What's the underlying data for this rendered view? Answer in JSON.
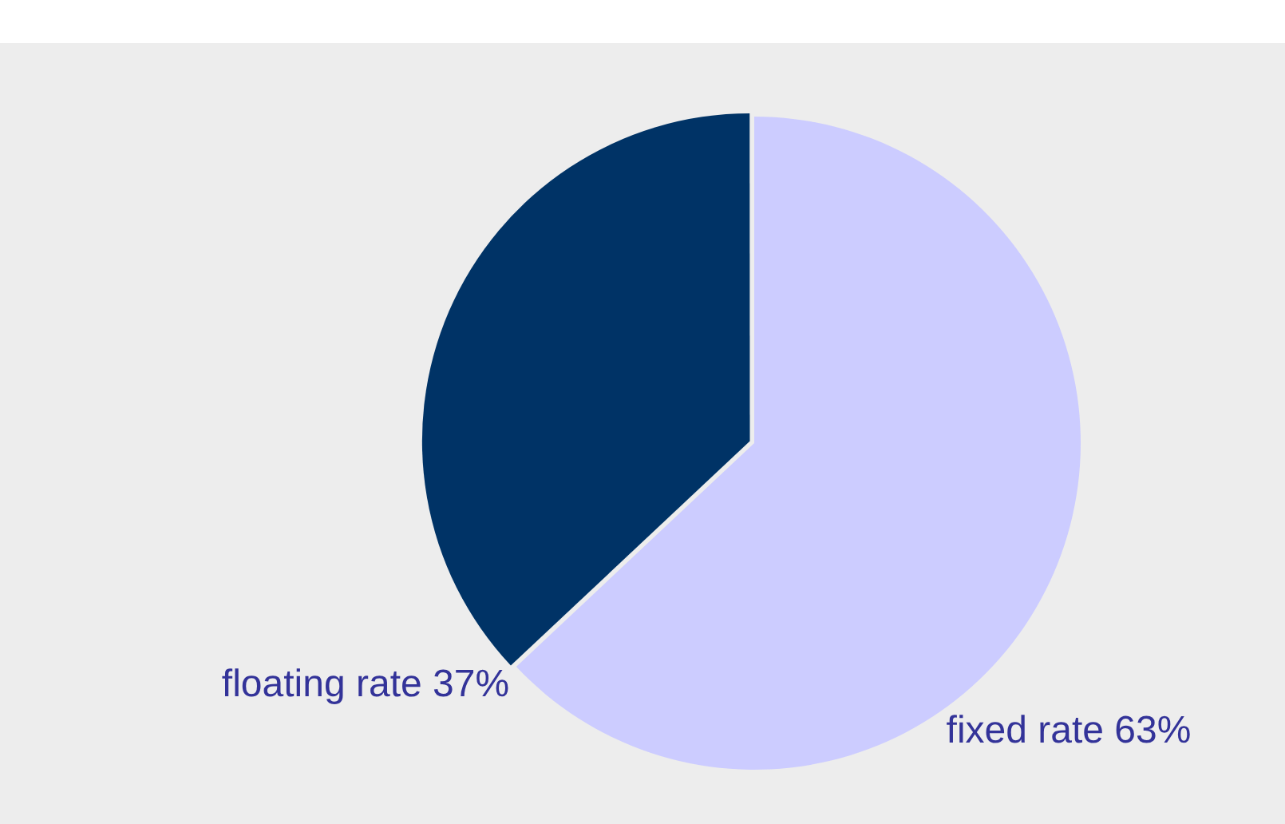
{
  "chart_data": {
    "type": "pie",
    "categories": [
      "floating rate",
      "fixed rate"
    ],
    "values": [
      37,
      63
    ],
    "colors": [
      "#003366",
      "#ccccff"
    ],
    "value_labels": [
      "37%",
      "63%"
    ],
    "legend": false
  }
}
